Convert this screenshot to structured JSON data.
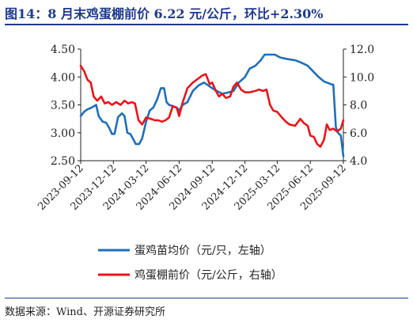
{
  "header": {
    "title": "图14：8 月末鸡蛋棚前价 6.22 元/公斤，环比+2.30%"
  },
  "footer": {
    "source": "数据来源：Wind、开源证券研究所"
  },
  "colors": {
    "left_series": "#1f6fb8",
    "right_series": "#e8141b",
    "rule": "#1f3a8c"
  },
  "chart_data": {
    "type": "line",
    "title": "",
    "xlabel": "",
    "ylabel_left": "",
    "ylabel_right": "",
    "x_ticks": [
      "2023-09-12",
      "2023-12-12",
      "2024-03-12",
      "2024-06-12",
      "2024-09-12",
      "2024-12-12",
      "2025-03-12",
      "2025-06-12",
      "2025-09-12"
    ],
    "x_range": [
      "2023-09-12",
      "2025-09-12"
    ],
    "y_left": {
      "ticks": [
        "2.50",
        "3.00",
        "3.50",
        "4.00",
        "4.50"
      ],
      "min": 2.5,
      "max": 4.5
    },
    "y_right": {
      "ticks": [
        "4.0",
        "6.0",
        "8.0",
        "10.0",
        "12.0"
      ],
      "min": 4.0,
      "max": 12.0
    },
    "grid": false,
    "legend_position": "bottom",
    "series": [
      {
        "name": "蛋鸡苗均价（元/只，左轴）",
        "axis": "left",
        "color": "#1f6fb8",
        "points": [
          [
            "2023-09-12",
            3.3
          ],
          [
            "2023-09-22",
            3.38
          ],
          [
            "2023-10-01",
            3.42
          ],
          [
            "2023-10-12",
            3.45
          ],
          [
            "2023-10-25",
            3.5
          ],
          [
            "2023-11-01",
            3.3
          ],
          [
            "2023-11-12",
            3.2
          ],
          [
            "2023-11-22",
            3.18
          ],
          [
            "2023-12-01",
            3.08
          ],
          [
            "2023-12-08",
            2.98
          ],
          [
            "2023-12-15",
            2.98
          ],
          [
            "2023-12-25",
            3.28
          ],
          [
            "2024-01-05",
            3.35
          ],
          [
            "2024-01-12",
            3.3
          ],
          [
            "2024-01-20",
            3.0
          ],
          [
            "2024-01-28",
            2.98
          ],
          [
            "2024-02-04",
            2.9
          ],
          [
            "2024-02-12",
            2.8
          ],
          [
            "2024-02-22",
            2.8
          ],
          [
            "2024-03-01",
            2.9
          ],
          [
            "2024-03-12",
            3.2
          ],
          [
            "2024-03-22",
            3.4
          ],
          [
            "2024-04-01",
            3.45
          ],
          [
            "2024-04-12",
            3.6
          ],
          [
            "2024-04-22",
            3.8
          ],
          [
            "2024-05-01",
            3.8
          ],
          [
            "2024-05-08",
            3.55
          ],
          [
            "2024-05-15",
            3.5
          ],
          [
            "2024-05-25",
            3.48
          ],
          [
            "2024-06-05",
            3.45
          ],
          [
            "2024-06-12",
            3.4
          ],
          [
            "2024-06-22",
            3.5
          ],
          [
            "2024-07-05",
            3.55
          ],
          [
            "2024-07-20",
            3.75
          ],
          [
            "2024-08-05",
            3.85
          ],
          [
            "2024-08-20",
            3.9
          ],
          [
            "2024-09-01",
            3.85
          ],
          [
            "2024-09-12",
            3.8
          ],
          [
            "2024-09-25",
            3.75
          ],
          [
            "2024-10-10",
            3.7
          ],
          [
            "2024-10-25",
            3.72
          ],
          [
            "2024-11-10",
            3.75
          ],
          [
            "2024-11-25",
            3.9
          ],
          [
            "2024-12-12",
            4.0
          ],
          [
            "2024-12-25",
            4.15
          ],
          [
            "2025-01-10",
            4.2
          ],
          [
            "2025-01-25",
            4.3
          ],
          [
            "2025-02-05",
            4.4
          ],
          [
            "2025-02-20",
            4.4
          ],
          [
            "2025-03-05",
            4.4
          ],
          [
            "2025-03-20",
            4.35
          ],
          [
            "2025-04-10",
            4.32
          ],
          [
            "2025-05-01",
            4.3
          ],
          [
            "2025-05-20",
            4.25
          ],
          [
            "2025-06-05",
            4.2
          ],
          [
            "2025-06-20",
            4.1
          ],
          [
            "2025-07-05",
            4.0
          ],
          [
            "2025-07-20",
            3.92
          ],
          [
            "2025-08-05",
            3.88
          ],
          [
            "2025-08-15",
            3.86
          ],
          [
            "2025-08-22",
            3.1
          ],
          [
            "2025-08-28",
            3.0
          ],
          [
            "2025-09-05",
            2.95
          ],
          [
            "2025-09-12",
            2.58
          ]
        ]
      },
      {
        "name": "鸡蛋棚前价（元/公斤，右轴）",
        "axis": "right",
        "color": "#e8141b",
        "points": [
          [
            "2023-09-12",
            10.8
          ],
          [
            "2023-09-22",
            10.4
          ],
          [
            "2023-10-01",
            9.8
          ],
          [
            "2023-10-10",
            9.6
          ],
          [
            "2023-10-18",
            8.6
          ],
          [
            "2023-10-28",
            8.3
          ],
          [
            "2023-11-08",
            8.6
          ],
          [
            "2023-11-18",
            8.1
          ],
          [
            "2023-11-28",
            8.2
          ],
          [
            "2023-12-08",
            8.0
          ],
          [
            "2023-12-20",
            8.2
          ],
          [
            "2024-01-01",
            8.0
          ],
          [
            "2024-01-12",
            8.3
          ],
          [
            "2024-01-22",
            8.1
          ],
          [
            "2024-02-01",
            8.2
          ],
          [
            "2024-02-10",
            8.1
          ],
          [
            "2024-02-20",
            6.9
          ],
          [
            "2024-03-01",
            6.6
          ],
          [
            "2024-03-12",
            7.1
          ],
          [
            "2024-03-25",
            7.0
          ],
          [
            "2024-04-05",
            6.9
          ],
          [
            "2024-04-15",
            6.9
          ],
          [
            "2024-04-25",
            6.8
          ],
          [
            "2024-05-05",
            6.9
          ],
          [
            "2024-05-15",
            7.1
          ],
          [
            "2024-05-25",
            7.9
          ],
          [
            "2024-06-05",
            7.8
          ],
          [
            "2024-06-12",
            7.2
          ],
          [
            "2024-06-22",
            8.2
          ],
          [
            "2024-07-05",
            9.2
          ],
          [
            "2024-07-20",
            9.6
          ],
          [
            "2024-08-05",
            9.9
          ],
          [
            "2024-08-15",
            10.1
          ],
          [
            "2024-08-25",
            10.2
          ],
          [
            "2024-09-05",
            9.5
          ],
          [
            "2024-09-12",
            9.6
          ],
          [
            "2024-09-22",
            9.0
          ],
          [
            "2024-10-01",
            8.6
          ],
          [
            "2024-10-10",
            8.8
          ],
          [
            "2024-10-20",
            8.5
          ],
          [
            "2024-11-01",
            8.6
          ],
          [
            "2024-11-10",
            9.3
          ],
          [
            "2024-11-20",
            9.6
          ],
          [
            "2024-12-01",
            9.1
          ],
          [
            "2024-12-12",
            8.9
          ],
          [
            "2024-12-25",
            8.9
          ],
          [
            "2025-01-10",
            9.0
          ],
          [
            "2025-01-20",
            9.1
          ],
          [
            "2025-02-01",
            9.0
          ],
          [
            "2025-02-10",
            9.1
          ],
          [
            "2025-02-20",
            8.0
          ],
          [
            "2025-03-01",
            7.6
          ],
          [
            "2025-03-12",
            7.5
          ],
          [
            "2025-03-25",
            7.1
          ],
          [
            "2025-04-05",
            6.8
          ],
          [
            "2025-04-15",
            6.6
          ],
          [
            "2025-05-01",
            6.5
          ],
          [
            "2025-05-15",
            7.0
          ],
          [
            "2025-05-25",
            6.7
          ],
          [
            "2025-06-05",
            6.5
          ],
          [
            "2025-06-12",
            5.8
          ],
          [
            "2025-06-22",
            5.7
          ],
          [
            "2025-07-01",
            5.2
          ],
          [
            "2025-07-10",
            5.0
          ],
          [
            "2025-07-20",
            5.5
          ],
          [
            "2025-07-28",
            6.6
          ],
          [
            "2025-08-05",
            6.2
          ],
          [
            "2025-08-15",
            6.3
          ],
          [
            "2025-08-25",
            6.1
          ],
          [
            "2025-09-05",
            6.3
          ],
          [
            "2025-09-12",
            6.9
          ]
        ]
      }
    ]
  }
}
